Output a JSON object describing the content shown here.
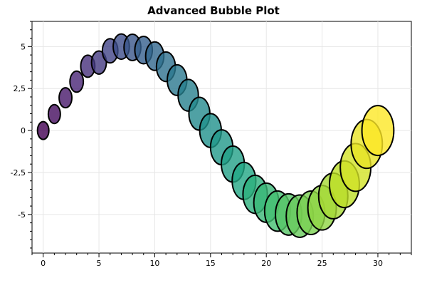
{
  "chart_data": {
    "type": "scatter",
    "title": "Advanced Bubble Plot",
    "xlabel": "",
    "ylabel": "",
    "xlim": [
      -1,
      33
    ],
    "ylim": [
      -7.3,
      6.5
    ],
    "grid": true,
    "x_ticks": [
      0,
      5,
      10,
      15,
      20,
      25,
      30
    ],
    "x_tick_labels": [
      "0",
      "5",
      "10",
      "15",
      "20",
      "25",
      "30"
    ],
    "y_ticks": [
      -5,
      -2.5,
      0,
      2.5,
      5
    ],
    "y_tick_labels": [
      "-5",
      "-2,5",
      "0",
      "2,5",
      "5"
    ],
    "colormap": "viridis",
    "edge_color": "#000000",
    "fill_opacity": 0.8,
    "x": [
      0,
      1,
      2,
      3,
      4,
      5,
      6,
      7,
      8,
      9,
      10,
      11,
      12,
      13,
      14,
      15,
      16,
      17,
      18,
      19,
      20,
      21,
      22,
      23,
      24,
      25,
      26,
      27,
      28,
      29,
      30
    ],
    "y": [
      0,
      0.98,
      1.95,
      2.91,
      3.83,
      4.05,
      4.75,
      5.0,
      4.95,
      4.79,
      4.43,
      3.8,
      3.0,
      2.1,
      1.0,
      0.0,
      -1.0,
      -2.0,
      -3.0,
      -3.8,
      -4.3,
      -4.8,
      -5.0,
      -5.1,
      -4.9,
      -4.6,
      -3.9,
      -3.2,
      -2.2,
      -0.8,
      0.0
    ],
    "sizes": [
      1,
      1.06,
      1.12,
      1.18,
      1.24,
      1.3,
      1.36,
      1.42,
      1.48,
      1.54,
      1.6,
      1.66,
      1.72,
      1.78,
      1.84,
      1.9,
      1.96,
      2.02,
      2.08,
      2.14,
      2.2,
      2.26,
      2.32,
      2.38,
      2.44,
      2.5,
      2.56,
      2.62,
      2.68,
      2.74,
      2.8
    ]
  }
}
